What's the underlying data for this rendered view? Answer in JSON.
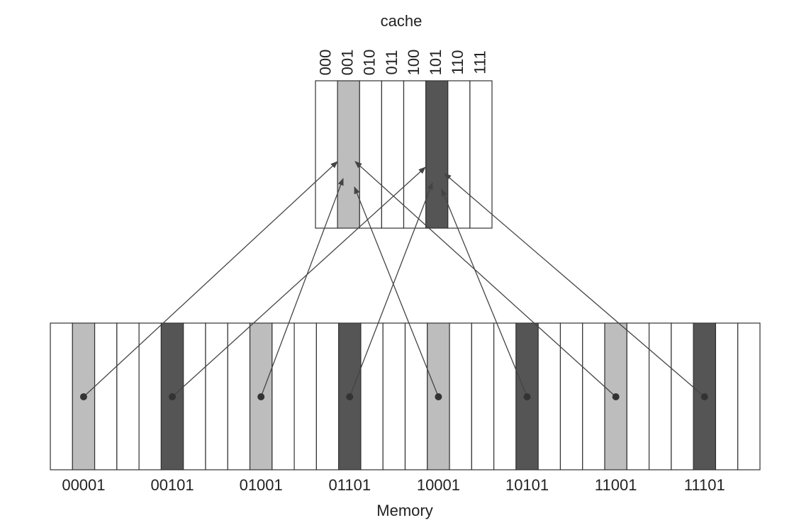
{
  "cache": {
    "title": "cache",
    "slots": [
      "000",
      "001",
      "010",
      "011",
      "100",
      "101",
      "110",
      "111"
    ]
  },
  "memory": {
    "title": "Memory",
    "addresses": [
      "00001",
      "00101",
      "01001",
      "01101",
      "10001",
      "10101",
      "11001",
      "11101"
    ]
  }
}
